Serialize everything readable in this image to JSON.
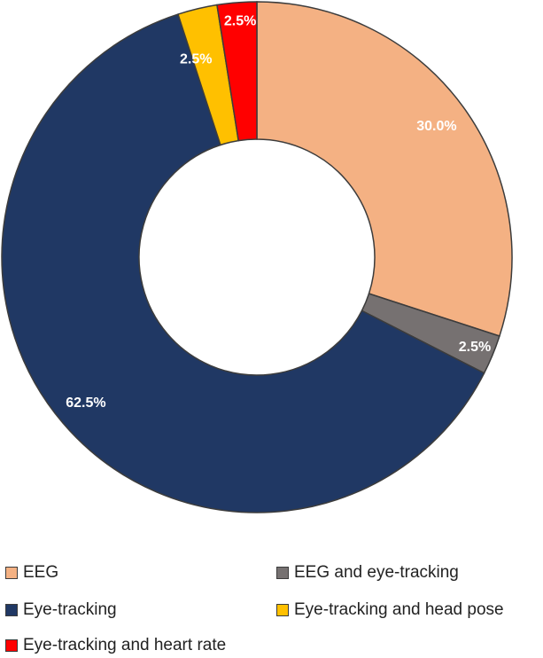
{
  "chart_data": {
    "type": "pie",
    "donut": true,
    "categories": [
      "EEG",
      "EEG and eye-tracking",
      "Eye-tracking",
      "Eye-tracking and head pose",
      "Eye-tracking and heart rate"
    ],
    "values": [
      30.0,
      2.5,
      62.5,
      2.5,
      2.5
    ],
    "data_labels": [
      "30.0%",
      "2.5%",
      "62.5%",
      "2.5%",
      "2.5%"
    ],
    "colors": [
      "#f4b183",
      "#767171",
      "#203864",
      "#ffc000",
      "#ff0000"
    ],
    "start": "12 o'clock",
    "direction": "clockwise",
    "legend_position": "bottom"
  },
  "legend": {
    "items": [
      {
        "label": "EEG",
        "color": "#f4b183"
      },
      {
        "label": "EEG and eye-tracking",
        "color": "#767171"
      },
      {
        "label": "Eye-tracking",
        "color": "#203864"
      },
      {
        "label": "Eye-tracking and head pose",
        "color": "#ffc000"
      },
      {
        "label": "Eye-tracking and heart rate",
        "color": "#ff0000"
      }
    ]
  }
}
